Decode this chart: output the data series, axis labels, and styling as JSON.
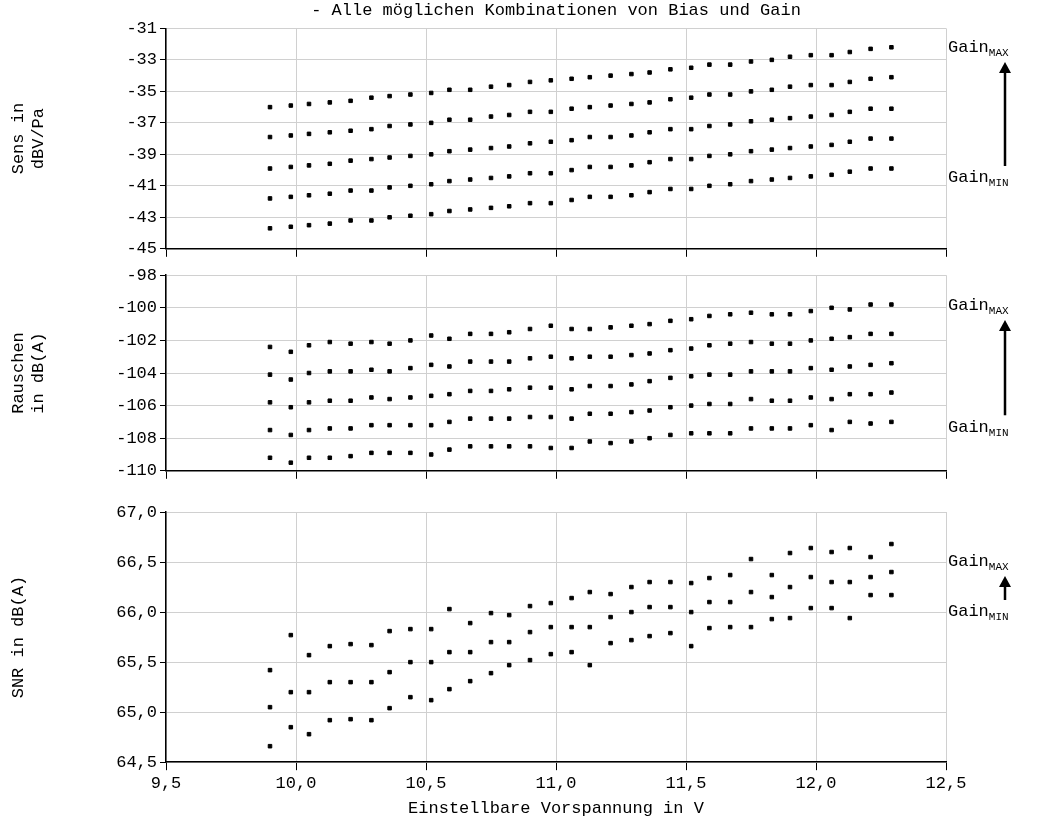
{
  "chart_data": [
    {
      "type": "scatter",
      "marker": "square",
      "title": "- Alle möglichen Kombinationen von Bias und Gain",
      "ylabel": "Sens in\ndBV/Pa",
      "annotations": [
        "Gain$_{MAX}$",
        "Gain$_{MIN}$"
      ],
      "xlim": [
        9.5,
        12.5
      ],
      "xticks": [
        9.5,
        10,
        10.5,
        11,
        11.5,
        12,
        12.5
      ],
      "ylim": [
        -45,
        -31
      ],
      "yticks": [
        -45,
        -43,
        -41,
        -39,
        -37,
        -35,
        -33,
        -31
      ],
      "grid": true,
      "legend": false,
      "tick_labels": "y",
      "series": [
        {
          "color": "#000000",
          "x": [
            9.9,
            9.9,
            9.9,
            9.9,
            9.9,
            9.98,
            9.98,
            9.98,
            9.98,
            9.98,
            10.05,
            10.05,
            10.05,
            10.05,
            10.05,
            10.13,
            10.13,
            10.13,
            10.13,
            10.13,
            10.21,
            10.21,
            10.21,
            10.21,
            10.21,
            10.29,
            10.29,
            10.29,
            10.29,
            10.29,
            10.36,
            10.36,
            10.36,
            10.36,
            10.36,
            10.44,
            10.44,
            10.44,
            10.44,
            10.44,
            10.52,
            10.52,
            10.52,
            10.52,
            10.52,
            10.59,
            10.59,
            10.59,
            10.59,
            10.59,
            10.67,
            10.67,
            10.67,
            10.67,
            10.67,
            10.75,
            10.75,
            10.75,
            10.75,
            10.75,
            10.82,
            10.82,
            10.82,
            10.82,
            10.82,
            10.9,
            10.9,
            10.9,
            10.9,
            10.9,
            10.98,
            10.98,
            10.98,
            10.98,
            10.98,
            11.06,
            11.06,
            11.06,
            11.06,
            11.06,
            11.13,
            11.13,
            11.13,
            11.13,
            11.13,
            11.21,
            11.21,
            11.21,
            11.21,
            11.21,
            11.29,
            11.29,
            11.29,
            11.29,
            11.29,
            11.36,
            11.36,
            11.36,
            11.36,
            11.36,
            11.44,
            11.44,
            11.44,
            11.44,
            11.44,
            11.52,
            11.52,
            11.52,
            11.52,
            11.52,
            11.59,
            11.59,
            11.59,
            11.59,
            11.59,
            11.67,
            11.67,
            11.67,
            11.67,
            11.67,
            11.75,
            11.75,
            11.75,
            11.75,
            11.75,
            11.83,
            11.83,
            11.83,
            11.83,
            11.83,
            11.9,
            11.9,
            11.9,
            11.9,
            11.9,
            11.98,
            11.98,
            11.98,
            11.98,
            11.98,
            12.06,
            12.06,
            12.06,
            12.06,
            12.06,
            12.13,
            12.13,
            12.13,
            12.13,
            12.13,
            12.21,
            12.21,
            12.21,
            12.21,
            12.21,
            12.29,
            12.29,
            12.29,
            12.29,
            12.29
          ],
          "values": [
            -36.0,
            -37.9,
            -39.9,
            -41.8,
            -43.7,
            -35.9,
            -37.8,
            -39.8,
            -41.7,
            -43.6,
            -35.8,
            -37.7,
            -39.7,
            -41.6,
            -43.5,
            -35.7,
            -37.6,
            -39.6,
            -41.5,
            -43.4,
            -35.6,
            -37.5,
            -39.4,
            -41.3,
            -43.2,
            -35.4,
            -37.4,
            -39.3,
            -41.3,
            -43.2,
            -35.3,
            -37.2,
            -39.2,
            -41.1,
            -43.0,
            -35.2,
            -37.1,
            -39.1,
            -41.0,
            -42.9,
            -35.1,
            -37.0,
            -39.0,
            -40.9,
            -42.8,
            -34.9,
            -36.8,
            -38.8,
            -40.7,
            -42.6,
            -34.9,
            -36.8,
            -38.7,
            -40.6,
            -42.5,
            -34.7,
            -36.6,
            -38.6,
            -40.5,
            -42.4,
            -34.6,
            -36.5,
            -38.5,
            -40.4,
            -42.3,
            -34.4,
            -36.3,
            -38.3,
            -40.2,
            -42.1,
            -34.3,
            -36.3,
            -38.2,
            -40.2,
            -42.1,
            -34.2,
            -36.1,
            -38.1,
            -40.0,
            -41.9,
            -34.1,
            -36.0,
            -37.9,
            -39.8,
            -41.7,
            -34.0,
            -35.9,
            -37.9,
            -39.8,
            -41.7,
            -33.9,
            -35.8,
            -37.8,
            -39.7,
            -41.6,
            -33.8,
            -35.7,
            -37.6,
            -39.5,
            -41.4,
            -33.6,
            -35.5,
            -37.4,
            -39.3,
            -41.2,
            -33.5,
            -35.4,
            -37.4,
            -39.3,
            -41.2,
            -33.3,
            -35.2,
            -37.2,
            -39.1,
            -41.0,
            -33.3,
            -35.2,
            -37.1,
            -39.0,
            -40.9,
            -33.1,
            -35.0,
            -36.9,
            -38.8,
            -40.7,
            -33.0,
            -34.9,
            -36.8,
            -38.7,
            -40.6,
            -32.8,
            -34.7,
            -36.7,
            -38.6,
            -40.5,
            -32.7,
            -34.6,
            -36.6,
            -38.5,
            -40.4,
            -32.7,
            -34.6,
            -36.5,
            -38.4,
            -40.3,
            -32.5,
            -34.4,
            -36.3,
            -38.2,
            -40.1,
            -32.3,
            -34.2,
            -36.1,
            -38.0,
            -39.9,
            -32.2,
            -34.1,
            -36.1,
            -38.0,
            -39.9
          ]
        }
      ]
    },
    {
      "type": "scatter",
      "marker": "square",
      "ylabel": "Rauschen\nin dB(A)",
      "annotations": [
        "Gain$_{MAX}$",
        "Gain$_{MIN}$"
      ],
      "xlim": [
        9.5,
        12.5
      ],
      "xticks": [
        9.5,
        10,
        10.5,
        11,
        11.5,
        12,
        12.5
      ],
      "ylim": [
        -110,
        -98
      ],
      "yticks": [
        -110,
        -108,
        -106,
        -104,
        -102,
        -100,
        -98
      ],
      "grid": true,
      "legend": false,
      "tick_labels": "y",
      "series": [
        {
          "color": "#000000",
          "x": [
            9.9,
            9.9,
            9.9,
            9.9,
            9.9,
            9.98,
            9.98,
            9.98,
            9.98,
            9.98,
            10.05,
            10.05,
            10.05,
            10.05,
            10.05,
            10.13,
            10.13,
            10.13,
            10.13,
            10.13,
            10.21,
            10.21,
            10.21,
            10.21,
            10.21,
            10.29,
            10.29,
            10.29,
            10.29,
            10.29,
            10.36,
            10.36,
            10.36,
            10.36,
            10.36,
            10.44,
            10.44,
            10.44,
            10.44,
            10.44,
            10.52,
            10.52,
            10.52,
            10.52,
            10.52,
            10.59,
            10.59,
            10.59,
            10.59,
            10.59,
            10.67,
            10.67,
            10.67,
            10.67,
            10.67,
            10.75,
            10.75,
            10.75,
            10.75,
            10.75,
            10.82,
            10.82,
            10.82,
            10.82,
            10.82,
            10.9,
            10.9,
            10.9,
            10.9,
            10.9,
            10.98,
            10.98,
            10.98,
            10.98,
            10.98,
            11.06,
            11.06,
            11.06,
            11.06,
            11.06,
            11.13,
            11.13,
            11.13,
            11.13,
            11.13,
            11.21,
            11.21,
            11.21,
            11.21,
            11.21,
            11.29,
            11.29,
            11.29,
            11.29,
            11.29,
            11.36,
            11.36,
            11.36,
            11.36,
            11.36,
            11.44,
            11.44,
            11.44,
            11.44,
            11.44,
            11.52,
            11.52,
            11.52,
            11.52,
            11.52,
            11.59,
            11.59,
            11.59,
            11.59,
            11.59,
            11.67,
            11.67,
            11.67,
            11.67,
            11.67,
            11.75,
            11.75,
            11.75,
            11.75,
            11.75,
            11.83,
            11.83,
            11.83,
            11.83,
            11.83,
            11.9,
            11.9,
            11.9,
            11.9,
            11.9,
            11.98,
            11.98,
            11.98,
            11.98,
            11.98,
            12.06,
            12.06,
            12.06,
            12.06,
            12.06,
            12.13,
            12.13,
            12.13,
            12.13,
            12.13,
            12.21,
            12.21,
            12.21,
            12.21,
            12.21,
            12.29,
            12.29,
            12.29,
            12.29,
            12.29
          ],
          "values": [
            -102.4,
            -104.1,
            -105.8,
            -107.5,
            -109.2,
            -102.7,
            -104.4,
            -106.1,
            -107.8,
            -109.5,
            -102.3,
            -104.0,
            -105.8,
            -107.5,
            -109.2,
            -102.1,
            -103.9,
            -105.7,
            -107.4,
            -109.2,
            -102.2,
            -103.9,
            -105.7,
            -107.4,
            -109.1,
            -102.1,
            -103.8,
            -105.5,
            -107.2,
            -108.9,
            -102.2,
            -103.9,
            -105.6,
            -107.2,
            -108.9,
            -102.0,
            -103.7,
            -105.5,
            -107.2,
            -108.9,
            -101.7,
            -103.5,
            -105.4,
            -107.2,
            -109.0,
            -101.9,
            -103.6,
            -105.3,
            -107.0,
            -108.7,
            -101.6,
            -103.3,
            -105.1,
            -106.8,
            -108.5,
            -101.6,
            -103.3,
            -105.1,
            -106.8,
            -108.5,
            -101.5,
            -103.3,
            -105.0,
            -106.8,
            -108.5,
            -101.3,
            -103.1,
            -104.9,
            -106.7,
            -108.5,
            -101.1,
            -103.0,
            -104.9,
            -106.7,
            -108.6,
            -101.3,
            -103.1,
            -105.0,
            -106.8,
            -108.6,
            -101.3,
            -103.0,
            -104.8,
            -106.5,
            -108.2,
            -101.2,
            -103.0,
            -104.8,
            -106.5,
            -108.3,
            -101.1,
            -102.9,
            -104.7,
            -106.4,
            -108.2,
            -101.0,
            -102.8,
            -104.5,
            -106.3,
            -108.0,
            -100.8,
            -102.6,
            -104.3,
            -106.1,
            -107.8,
            -100.7,
            -102.5,
            -104.2,
            -106.0,
            -107.7,
            -100.5,
            -102.3,
            -104.1,
            -105.9,
            -107.7,
            -100.4,
            -102.2,
            -104.1,
            -105.9,
            -107.7,
            -100.3,
            -102.1,
            -103.9,
            -105.6,
            -107.4,
            -100.4,
            -102.2,
            -103.9,
            -105.7,
            -107.4,
            -100.4,
            -102.2,
            -103.9,
            -105.7,
            -107.4,
            -100.2,
            -102.0,
            -103.7,
            -105.5,
            -107.2,
            -100.0,
            -101.9,
            -103.8,
            -105.6,
            -107.5,
            -100.1,
            -101.8,
            -103.6,
            -105.3,
            -107.0,
            -99.8,
            -101.6,
            -103.5,
            -105.3,
            -107.1,
            -99.8,
            -101.6,
            -103.4,
            -105.2,
            -107.0
          ]
        }
      ]
    },
    {
      "type": "scatter",
      "marker": "square",
      "xlabel": "Einstellbare Vorspannung in V",
      "ylabel": "SNR in dB(A)",
      "annotations": [
        "Gain$_{MAX}$",
        "Gain$_{MIN}$"
      ],
      "xlim": [
        9.5,
        12.5
      ],
      "xticks": [
        {
          "value": 9.5,
          "label": "9,5"
        },
        {
          "value": 10,
          "label": "10,0"
        },
        {
          "value": 10.5,
          "label": "10,5"
        },
        {
          "value": 11,
          "label": "11,0"
        },
        {
          "value": 11.5,
          "label": "11,5"
        },
        {
          "value": 12,
          "label": "12,0"
        },
        {
          "value": 12.5,
          "label": "12,5"
        }
      ],
      "ylim": [
        64.5,
        67
      ],
      "yticks": [
        {
          "value": 64.5,
          "label": "64,5"
        },
        {
          "value": 65,
          "label": "65,0"
        },
        {
          "value": 65.5,
          "label": "65,5"
        },
        {
          "value": 66,
          "label": "66,0"
        },
        {
          "value": 66.5,
          "label": "66,5"
        },
        {
          "value": 67,
          "label": "67,0"
        }
      ],
      "grid": true,
      "legend": false,
      "series": [
        {
          "color": "#000000",
          "x": [
            9.9,
            9.9,
            9.9,
            9.98,
            9.98,
            9.98,
            10.05,
            10.05,
            10.05,
            10.13,
            10.13,
            10.13,
            10.21,
            10.21,
            10.21,
            10.29,
            10.29,
            10.29,
            10.36,
            10.36,
            10.36,
            10.44,
            10.44,
            10.44,
            10.52,
            10.52,
            10.52,
            10.59,
            10.59,
            10.59,
            10.67,
            10.67,
            10.67,
            10.75,
            10.75,
            10.75,
            10.82,
            10.82,
            10.82,
            10.9,
            10.9,
            10.9,
            10.98,
            10.98,
            10.98,
            11.06,
            11.06,
            11.06,
            11.13,
            11.13,
            11.13,
            11.21,
            11.21,
            11.21,
            11.29,
            11.29,
            11.29,
            11.36,
            11.36,
            11.36,
            11.44,
            11.44,
            11.44,
            11.52,
            11.52,
            11.52,
            11.59,
            11.59,
            11.59,
            11.67,
            11.67,
            11.67,
            11.75,
            11.75,
            11.75,
            11.83,
            11.83,
            11.83,
            11.9,
            11.9,
            11.9,
            11.98,
            11.98,
            11.98,
            12.06,
            12.06,
            12.06,
            12.13,
            12.13,
            12.13,
            12.21,
            12.21,
            12.21,
            12.29,
            12.29,
            12.29
          ],
          "values": [
            65.42,
            65.05,
            64.66,
            65.77,
            65.2,
            64.85,
            65.57,
            65.2,
            64.78,
            65.66,
            65.3,
            64.92,
            65.68,
            65.3,
            64.93,
            65.67,
            65.3,
            64.92,
            65.81,
            65.4,
            65.04,
            65.83,
            65.5,
            65.15,
            65.83,
            65.5,
            65.12,
            66.03,
            65.6,
            65.23,
            65.89,
            65.6,
            65.31,
            65.99,
            65.7,
            65.39,
            65.97,
            65.7,
            65.47,
            66.06,
            65.8,
            65.52,
            66.09,
            65.85,
            65.58,
            66.14,
            65.85,
            65.6,
            66.2,
            65.85,
            65.47,
            66.18,
            65.95,
            65.69,
            66.25,
            66.0,
            65.72,
            66.3,
            66.05,
            65.76,
            66.3,
            66.05,
            65.79,
            66.29,
            66.0,
            65.66,
            66.34,
            66.1,
            65.84,
            66.37,
            66.1,
            65.85,
            66.53,
            66.2,
            65.85,
            66.37,
            66.15,
            65.93,
            66.59,
            66.25,
            65.94,
            66.64,
            66.35,
            66.04,
            66.6,
            66.3,
            66.04,
            66.64,
            66.3,
            65.94,
            66.55,
            66.35,
            66.17,
            66.68,
            66.4,
            66.17
          ]
        }
      ]
    }
  ]
}
